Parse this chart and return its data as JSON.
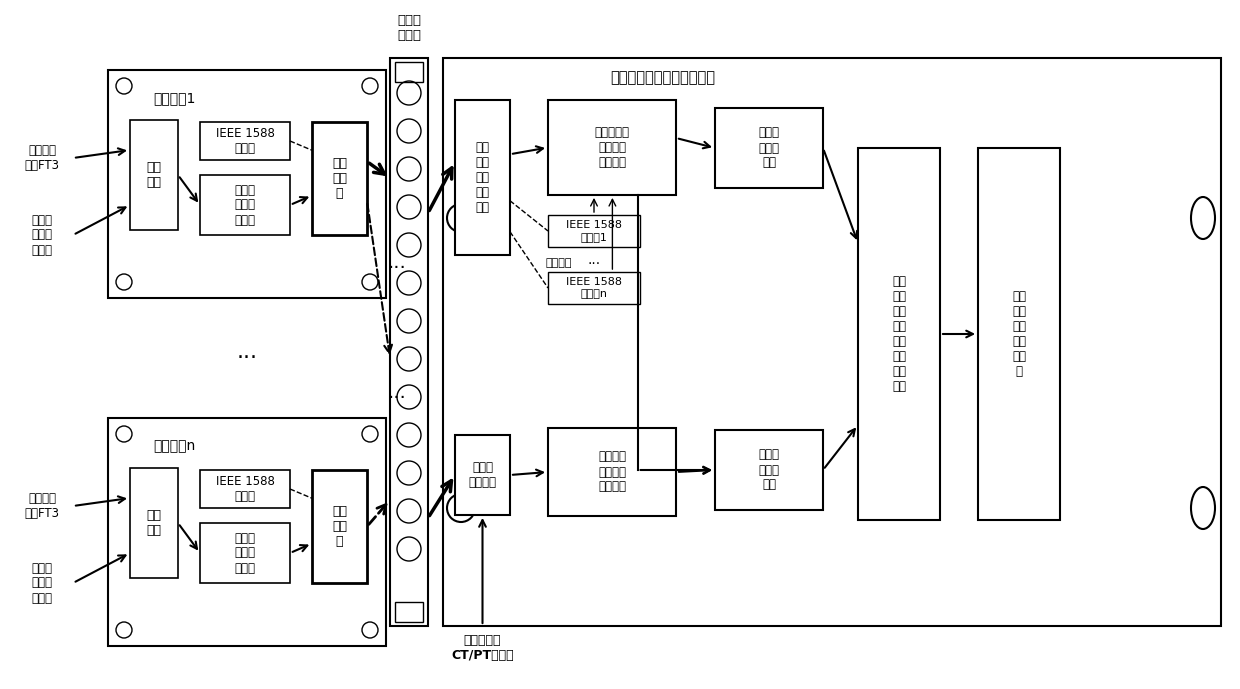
{
  "title": "电子式互感器误差校验系统",
  "switch_label": "过程层\n交换机",
  "merge_unit1_label": "合并单元1",
  "merge_unit_n_label": "合并单元n",
  "data_interface": "数据\n接口",
  "ieee1588_master1": "IEEE 1588\n主时钟",
  "sample_sync1": "采样值\n报文同\n步发送",
  "eth_interface1": "以太\n网接\n口",
  "ieee1588_master_n": "IEEE 1588\n主时钟",
  "sample_sync_n": "采样值\n报文同\n步发送",
  "eth_interface_n": "以太\n网接\n口",
  "adaptive_eth": "自适\n应以\n太网\n数据\n接口",
  "sample_recv": "采样值数据\n接收同步\n处理模块",
  "ieee1588_slave1": "IEEE 1588\n从时钟1",
  "multi_slave": "多从钟：",
  "ieee1588_slave_n": "IEEE 1588\n从时钟n",
  "std_src_interface": "标准源\n数据接口",
  "high_precision": "高精度标\n准源数据\n处理模块",
  "freq_tracking": "频率跟\n踪测量\n模块",
  "amplitude_phase": "幅值相\n位测量\n模块",
  "calibration": "电子\n式互\n感器\n幅值\n相位\n误差\n校验\n模块",
  "display": "数据\n显示\n及人\n机交\n互模\n块",
  "std_sensor_label": "标准互感器\nCT/PT模拟量",
  "input_ft3_top": "电子式互\n感器FT3",
  "input_analog_top": "电子式\n互感器\n模拟量",
  "input_ft3_bottom": "电子式互\n感器FT3",
  "input_analog_bottom": "电子式\n互感器\n模拟量",
  "dots_h": "···",
  "dots_v": "···",
  "bg_color": "#ffffff"
}
